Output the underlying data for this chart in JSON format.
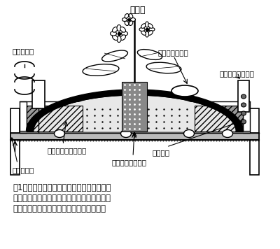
{
  "bg_color": "#ffffff",
  "fig_width": 4.0,
  "fig_height": 3.56,
  "dpi": 100,
  "caption_line1": "図1　保水シート耕方式の養液栽培装置の基",
  "caption_line2": "本構造．図中では，根域への光侵入を防ぐ発",
  "caption_line3": "泡スチロール製のフタは省略されている．",
  "label_tomato": "トマト",
  "label_water_sensor": "水位センサ",
  "label_irrigation": "かん水チューブ",
  "label_overflow": "オーバーフロー穴",
  "label_nonwoven": "不織布＋遥根シート",
  "label_container": "コンテナ",
  "label_foam": "発泡スチロール台",
  "label_bed": "栽培ベッド"
}
